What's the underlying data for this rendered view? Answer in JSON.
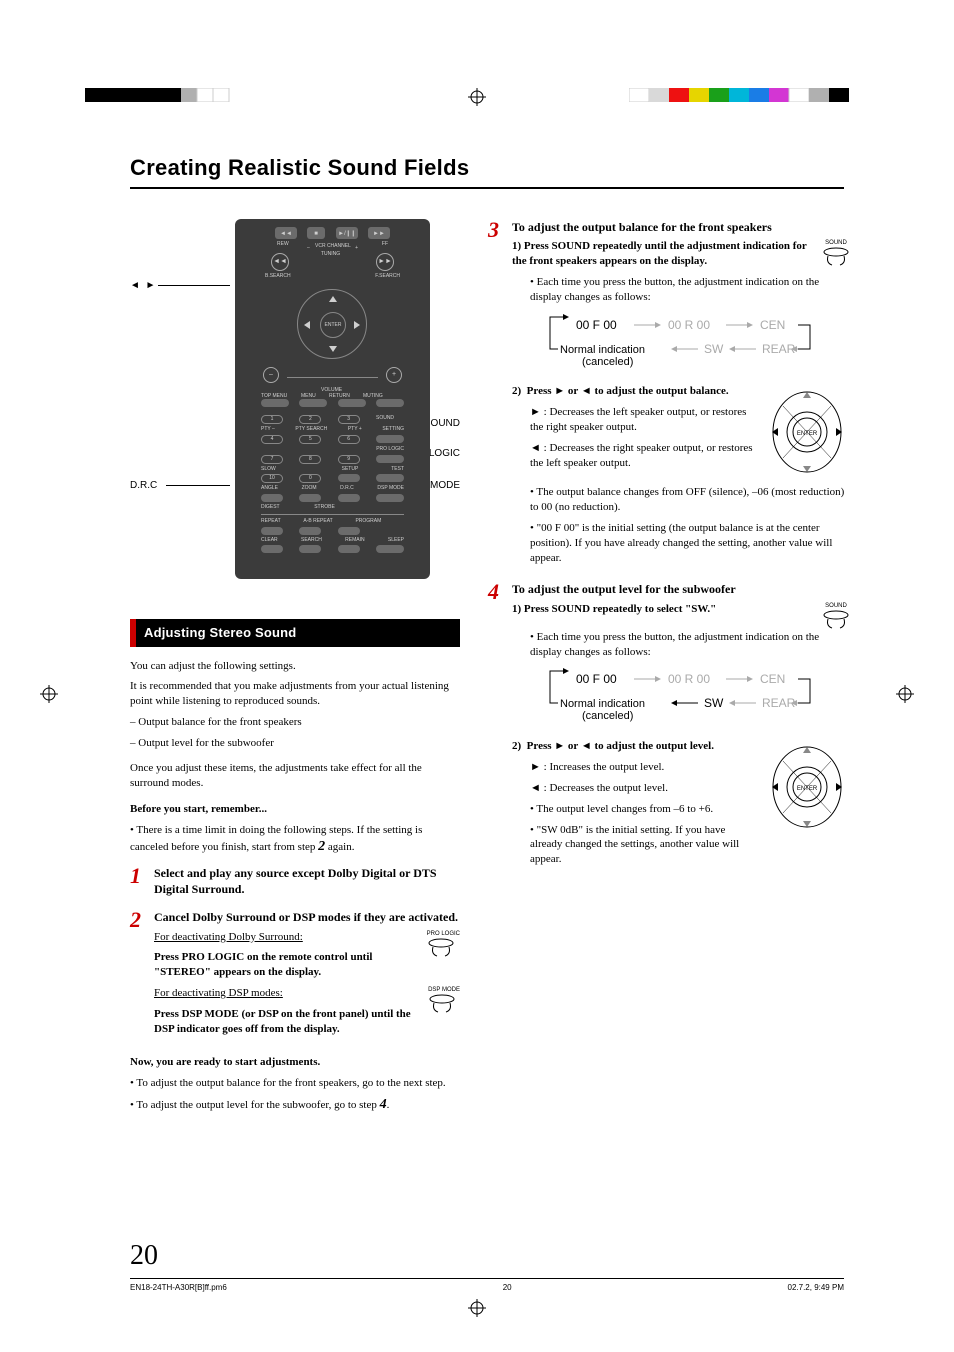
{
  "colorbar": [
    "#000000",
    "#000000",
    "#000000",
    "#000000",
    "#000000",
    "#000000",
    "#b0b0b0",
    "#ffffff",
    "#ffffff",
    "#ffffff",
    "#ffffff",
    "#d9d9d9",
    "#e11",
    "#e6d500",
    "#1aa01a",
    "#00b6d9",
    "#1a7de6",
    "#d336d3",
    "#ffffff",
    "#b0b0b0",
    "#000000"
  ],
  "title": "Creating Realistic Sound Fields",
  "section_bar": "Adjusting Stereo Sound",
  "callouts": {
    "arrows": "2   3",
    "drc": "D.R.C",
    "sound": "SOUND",
    "prologic": "PRO LOGIC",
    "dspmode": "DSP MODE"
  },
  "remote": {
    "rew": "REW",
    "ff": "FF",
    "vcr": "VCR CHANNEL",
    "tuning": "TUNING",
    "bsearch": "B.SEARCH",
    "fsearch": "F.SEARCH",
    "enter": "ENTER",
    "volume": "VOLUME",
    "topmenu": "TOP MENU",
    "menu": "MENU",
    "return": "RETURN",
    "muting": "MUTING",
    "pty_minus": "PTY –",
    "pty_search": "PTY SEARCH",
    "pty_plus": "PTY +",
    "setting": "SETTING",
    "sound_lbl": "SOUND",
    "prologic_lbl": "PRO LOGIC",
    "slow": "SLOW",
    "setup": "SETUP",
    "test": "TEST",
    "angle": "ANGLE",
    "zoom": "ZOOM",
    "drc": "D.R.C",
    "dspmode": "DSP MODE",
    "digest": "DIGEST",
    "strobe": "STROBE",
    "repeat": "REPEAT",
    "abrepeat": "A-B REPEAT",
    "program": "PROGRAM",
    "clear": "CLEAR",
    "search": "SEARCH",
    "remain": "REMAIN",
    "sleep": "SLEEP"
  },
  "leftcol": {
    "p1": "You can adjust the following settings.",
    "p2": "It is recommended that you make adjustments from your actual listening point while listening to reproduced sounds.",
    "li1": "– Output balance for the front speakers",
    "li2": "– Output level for the subwoofer",
    "p3": "Once you adjust these items, the adjustments take effect for all the surround modes.",
    "before": "Before you start, remember...",
    "before_b": "• There is a time limit in doing the following steps. If the setting is canceled before you finish, start from step ",
    "before_b2": " again.",
    "step1": "Select and play any source except Dolby Digital or DTS Digital Surround.",
    "step2": "Cancel Dolby Surround or DSP modes if they are activated.",
    "deact_dolby": "For deactivating Dolby Surround:",
    "deact_dolby_b": "Press PRO LOGIC on the remote control until \"STEREO\" appears on the display.",
    "deact_dsp": "For deactivating DSP modes:",
    "deact_dsp_b": "Press DSP MODE (or DSP on the front panel) until the DSP indicator goes off from the display.",
    "now": "Now, you are ready to start adjustments.",
    "now_b1": "• To adjust the output balance for the front speakers, go to the next step.",
    "now_b2": "• To adjust the output level for the subwoofer, go to step ",
    "now_b2_end": "."
  },
  "rightcol": {
    "s3_title": "To adjust the output balance for the front speakers",
    "s3_1": "1)  Press SOUND repeatedly until the adjustment indication for the front speakers appears on the display.",
    "s3_1b": "• Each time you press the button, the adjustment indication on the display changes as follows:",
    "flow": {
      "a": "00 F 00",
      "b": "00 R 00",
      "c": "CEN",
      "d": "Normal indication",
      "d2": "(canceled)",
      "e": "SW",
      "f": "REAR"
    },
    "s3_2": "2)  Press 3 or 2 to adjust the output balance.",
    "s3_2a": "3 : Decreases the left speaker output, or restores the right speaker output.",
    "s3_2b": "2 : Decreases the right speaker output, or restores the left speaker output.",
    "s3_2c": "• The output balance changes from OFF (silence), –06 (most reduction) to 00 (no reduction).",
    "s3_2d": "• \"00 F 00\" is the initial setting (the output balance is at the center position). If you have already changed the setting, another value will appear.",
    "s4_title": "To adjust the output level for the subwoofer",
    "s4_1": "1)  Press SOUND repeatedly to select \"SW.\"",
    "s4_1b": "• Each time you press the button, the adjustment indication on the display changes as follows:",
    "s4_2": "2)  Press 3 or 2 to adjust the output level.",
    "s4_2a": "3 : Increases the output level.",
    "s4_2b": "2 : Decreases the output level.",
    "s4_2c": "• The output level changes from –6 to +6.",
    "s4_2d": "• \"SW 0dB\" is the initial setting. If you have already changed the settings, another value will appear."
  },
  "icons": {
    "sound": "SOUND",
    "prologic": "PRO LOGIC",
    "dspmode": "DSP MODE",
    "enter": "ENTER"
  },
  "page_num": "20",
  "footer": {
    "left": "EN18-24TH-A30R[B]ff.pm6",
    "mid": "20",
    "right": "02.7.2, 9:49 PM"
  }
}
